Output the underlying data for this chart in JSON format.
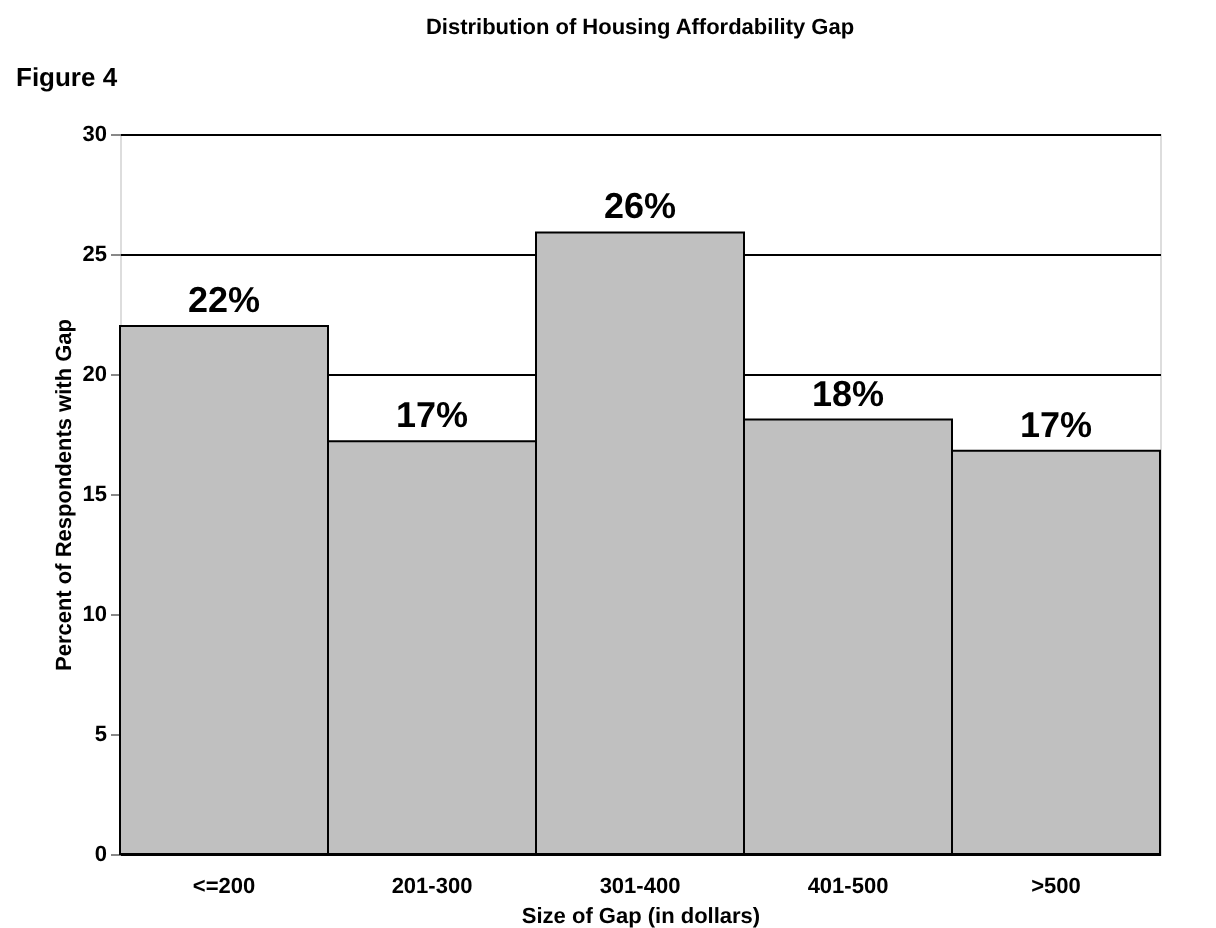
{
  "chart_data": {
    "type": "bar",
    "title": "Distribution of Housing Affordability Gap",
    "annotations": [
      "Figure 4"
    ],
    "xlabel": "Size of Gap (in dollars)",
    "ylabel": "Percent of Respondents with Gap",
    "categories": [
      "<=200",
      "201-300",
      "301-400",
      "401-500",
      ">500"
    ],
    "values": [
      22,
      17.2,
      25.9,
      18.1,
      16.8
    ],
    "value_labels": [
      "22%",
      "17%",
      "26%",
      "18%",
      "17%"
    ],
    "color": "#c0c0c0",
    "ylim": [
      0,
      30
    ],
    "yticks": [
      0,
      5,
      10,
      15,
      20,
      25,
      30
    ],
    "grid": "y"
  }
}
